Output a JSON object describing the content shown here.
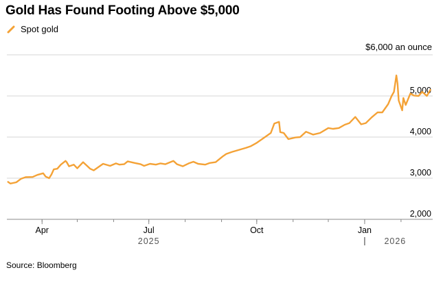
{
  "title": "Gold Has Found Footing Above $5,000",
  "source": "Source: Bloomberg",
  "colors": {
    "series": "#f4a236",
    "grid": "#d4d4d4",
    "axis": "#888888"
  },
  "chart_data": {
    "type": "line",
    "title": "Gold Has Found Footing Above $5,000",
    "unit_label": "$6,000 an ounce",
    "ylim": [
      2000,
      6000
    ],
    "y_ticks": [
      {
        "value": 6000,
        "label": ""
      },
      {
        "value": 5000,
        "label": "5,000"
      },
      {
        "value": 4000,
        "label": "4,000"
      },
      {
        "value": 3000,
        "label": "3,000"
      },
      {
        "value": 2000,
        "label": "2,000"
      }
    ],
    "x_range": [
      "2025-03-02",
      "2026-02-28"
    ],
    "x_ticks": [
      {
        "date": "2025-04-01",
        "label": "Apr"
      },
      {
        "date": "2025-07-01",
        "label": "Jul"
      },
      {
        "date": "2025-10-01",
        "label": "Oct"
      },
      {
        "date": "2026-01-01",
        "label": "Jan"
      }
    ],
    "year_labels": [
      {
        "date": "2025-07-01",
        "label": "2025"
      },
      {
        "date": "2026-01-27",
        "label": "2026"
      }
    ],
    "year_divider": "2026-01-01",
    "legend": [
      {
        "name": "Spot gold",
        "color": "#f4a236"
      }
    ],
    "series": [
      {
        "name": "Spot gold",
        "x": [
          "2025-03-03",
          "2025-03-05",
          "2025-03-10",
          "2025-03-14",
          "2025-03-18",
          "2025-03-24",
          "2025-03-28",
          "2025-04-02",
          "2025-04-04",
          "2025-04-07",
          "2025-04-09",
          "2025-04-11",
          "2025-04-14",
          "2025-04-17",
          "2025-04-21",
          "2025-04-22",
          "2025-04-24",
          "2025-04-28",
          "2025-05-01",
          "2025-05-06",
          "2025-05-12",
          "2025-05-15",
          "2025-05-20",
          "2025-05-23",
          "2025-05-29",
          "2025-06-03",
          "2025-06-06",
          "2025-06-10",
          "2025-06-13",
          "2025-06-19",
          "2025-06-24",
          "2025-06-27",
          "2025-07-02",
          "2025-07-07",
          "2025-07-11",
          "2025-07-15",
          "2025-07-22",
          "2025-07-25",
          "2025-07-30",
          "2025-08-04",
          "2025-08-08",
          "2025-08-12",
          "2025-08-18",
          "2025-08-22",
          "2025-08-27",
          "2025-09-02",
          "2025-09-05",
          "2025-09-10",
          "2025-09-16",
          "2025-09-22",
          "2025-09-26",
          "2025-10-01",
          "2025-10-08",
          "2025-10-13",
          "2025-10-16",
          "2025-10-20",
          "2025-10-21",
          "2025-10-24",
          "2025-10-28",
          "2025-11-03",
          "2025-11-07",
          "2025-11-12",
          "2025-11-18",
          "2025-11-24",
          "2025-12-01",
          "2025-12-05",
          "2025-12-10",
          "2025-12-15",
          "2025-12-19",
          "2025-12-24",
          "2025-12-29",
          "2026-01-02",
          "2026-01-07",
          "2026-01-12",
          "2026-01-16",
          "2026-01-21",
          "2026-01-24",
          "2026-01-26",
          "2026-01-28",
          "2026-01-29",
          "2026-01-30",
          "2026-02-02",
          "2026-02-03",
          "2026-02-05",
          "2026-02-09",
          "2026-02-12",
          "2026-02-16",
          "2026-02-19",
          "2026-02-23",
          "2026-02-26"
        ],
        "values": [
          2910,
          2870,
          2900,
          2985,
          3025,
          3030,
          3080,
          3120,
          3040,
          3000,
          3090,
          3215,
          3230,
          3330,
          3420,
          3390,
          3290,
          3330,
          3240,
          3390,
          3230,
          3190,
          3290,
          3350,
          3300,
          3360,
          3330,
          3340,
          3410,
          3370,
          3340,
          3300,
          3350,
          3330,
          3360,
          3340,
          3420,
          3340,
          3290,
          3360,
          3400,
          3350,
          3330,
          3370,
          3390,
          3530,
          3590,
          3640,
          3690,
          3740,
          3780,
          3860,
          4000,
          4100,
          4330,
          4370,
          4120,
          4100,
          3950,
          3990,
          4000,
          4130,
          4060,
          4100,
          4220,
          4200,
          4220,
          4300,
          4340,
          4490,
          4310,
          4340,
          4480,
          4600,
          4600,
          4800,
          5000,
          5100,
          5500,
          5300,
          4890,
          4650,
          4950,
          4780,
          5060,
          5010,
          5000,
          5100,
          5000,
          5150
        ]
      }
    ]
  }
}
